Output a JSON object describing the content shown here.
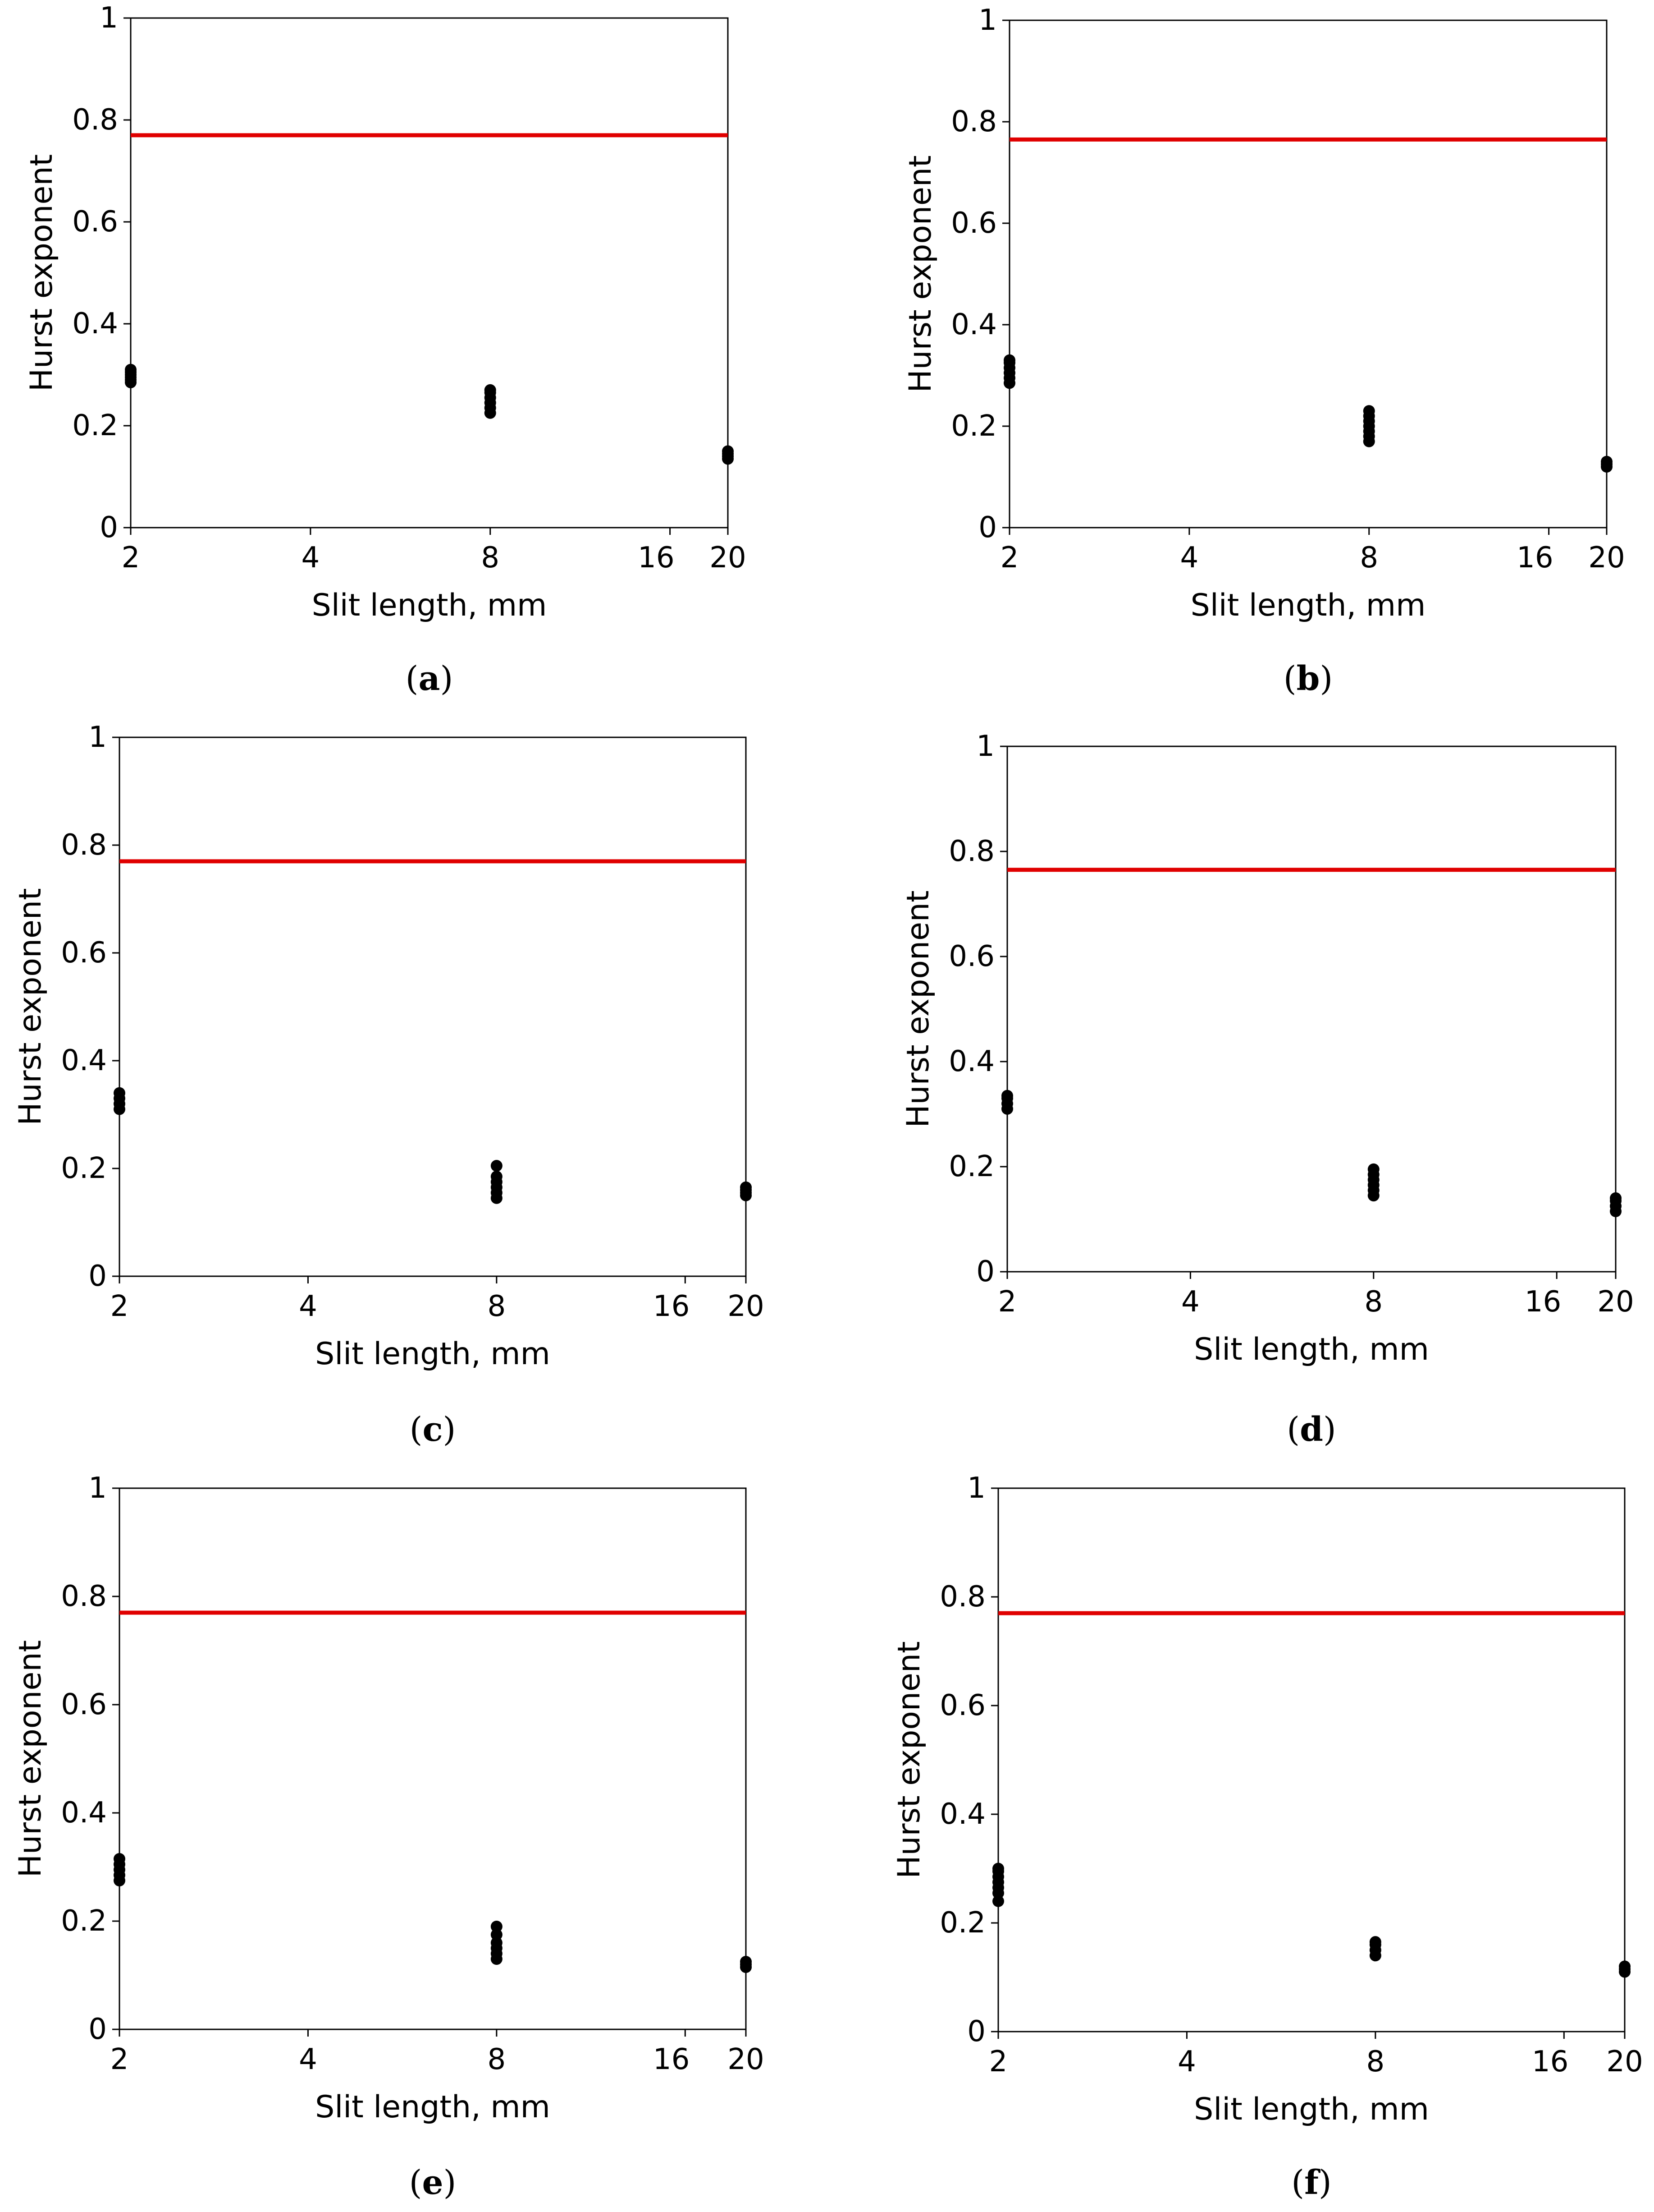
{
  "colors": {
    "reference_line": "#e00000",
    "points": "#000000",
    "axes": "#000000"
  },
  "chart_data": [
    {
      "type": "scatter",
      "caption_letter": "a",
      "xlabel": "Slit length, mm",
      "ylabel": "Hurst exponent",
      "x_scale": "log2",
      "xlim": [
        2,
        20
      ],
      "ylim": [
        0,
        1
      ],
      "x_ticks": [
        2,
        4,
        8,
        16,
        20
      ],
      "x_tick_labels": [
        "2",
        "4",
        "8",
        "16",
        "20"
      ],
      "y_ticks": [
        0,
        0.2,
        0.4,
        0.6,
        0.8,
        1
      ],
      "y_tick_labels": [
        "0",
        "0.2",
        "0.4",
        "0.6",
        "0.8",
        "1"
      ],
      "reference_line": 0.77,
      "series": [
        {
          "x": 2,
          "values": [
            0.285,
            0.29,
            0.295,
            0.3,
            0.305,
            0.31
          ]
        },
        {
          "x": 8,
          "values": [
            0.225,
            0.235,
            0.245,
            0.255,
            0.265,
            0.27
          ]
        },
        {
          "x": 20,
          "values": [
            0.135,
            0.14,
            0.145,
            0.15
          ]
        }
      ]
    },
    {
      "type": "scatter",
      "caption_letter": "b",
      "xlabel": "Slit length, mm",
      "ylabel": "Hurst exponent",
      "x_scale": "log2",
      "xlim": [
        2,
        20
      ],
      "ylim": [
        0,
        1
      ],
      "x_ticks": [
        2,
        4,
        8,
        16,
        20
      ],
      "x_tick_labels": [
        "2",
        "4",
        "8",
        "16",
        "20"
      ],
      "y_ticks": [
        0,
        0.2,
        0.4,
        0.6,
        0.8,
        1
      ],
      "y_tick_labels": [
        "0",
        "0.2",
        "0.4",
        "0.6",
        "0.8",
        "1"
      ],
      "reference_line": 0.765,
      "series": [
        {
          "x": 2,
          "values": [
            0.285,
            0.295,
            0.305,
            0.315,
            0.325,
            0.33
          ]
        },
        {
          "x": 8,
          "values": [
            0.17,
            0.18,
            0.19,
            0.2,
            0.21,
            0.22,
            0.23
          ]
        },
        {
          "x": 20,
          "values": [
            0.12,
            0.125,
            0.13
          ]
        }
      ]
    },
    {
      "type": "scatter",
      "caption_letter": "c",
      "xlabel": "Slit length, mm",
      "ylabel": "Hurst exponent",
      "x_scale": "log2",
      "xlim": [
        2,
        20
      ],
      "ylim": [
        0,
        1
      ],
      "x_ticks": [
        2,
        4,
        8,
        16,
        20
      ],
      "x_tick_labels": [
        "2",
        "4",
        "8",
        "16",
        "20"
      ],
      "y_ticks": [
        0,
        0.2,
        0.4,
        0.6,
        0.8,
        1
      ],
      "y_tick_labels": [
        "0",
        "0.2",
        "0.4",
        "0.6",
        "0.8",
        "1"
      ],
      "reference_line": 0.77,
      "series": [
        {
          "x": 2,
          "values": [
            0.31,
            0.32,
            0.33,
            0.34
          ]
        },
        {
          "x": 8,
          "values": [
            0.145,
            0.155,
            0.165,
            0.175,
            0.185,
            0.205
          ]
        },
        {
          "x": 20,
          "values": [
            0.15,
            0.155,
            0.16,
            0.165
          ]
        }
      ]
    },
    {
      "type": "scatter",
      "caption_letter": "d",
      "xlabel": "Slit length, mm",
      "ylabel": "Hurst exponent",
      "x_scale": "log2",
      "xlim": [
        2,
        20
      ],
      "ylim": [
        0,
        1
      ],
      "x_ticks": [
        2,
        4,
        8,
        16,
        20
      ],
      "x_tick_labels": [
        "2",
        "4",
        "8",
        "16",
        "20"
      ],
      "y_ticks": [
        0,
        0.2,
        0.4,
        0.6,
        0.8,
        1
      ],
      "y_tick_labels": [
        "0",
        "0.2",
        "0.4",
        "0.6",
        "0.8",
        "1"
      ],
      "reference_line": 0.765,
      "series": [
        {
          "x": 2,
          "values": [
            0.31,
            0.32,
            0.33,
            0.335
          ]
        },
        {
          "x": 8,
          "values": [
            0.145,
            0.155,
            0.165,
            0.175,
            0.185,
            0.195
          ]
        },
        {
          "x": 20,
          "values": [
            0.115,
            0.125,
            0.135,
            0.14
          ]
        }
      ]
    },
    {
      "type": "scatter",
      "caption_letter": "e",
      "xlabel": "Slit length, mm",
      "ylabel": "Hurst exponent",
      "x_scale": "log2",
      "xlim": [
        2,
        20
      ],
      "ylim": [
        0,
        1
      ],
      "x_ticks": [
        2,
        4,
        8,
        16,
        20
      ],
      "x_tick_labels": [
        "2",
        "4",
        "8",
        "16",
        "20"
      ],
      "y_ticks": [
        0,
        0.2,
        0.4,
        0.6,
        0.8,
        1
      ],
      "y_tick_labels": [
        "0",
        "0.2",
        "0.4",
        "0.6",
        "0.8",
        "1"
      ],
      "reference_line": 0.77,
      "series": [
        {
          "x": 2,
          "values": [
            0.275,
            0.285,
            0.295,
            0.305,
            0.315
          ]
        },
        {
          "x": 8,
          "values": [
            0.13,
            0.14,
            0.15,
            0.16,
            0.175,
            0.19
          ]
        },
        {
          "x": 20,
          "values": [
            0.115,
            0.12,
            0.125
          ]
        }
      ]
    },
    {
      "type": "scatter",
      "caption_letter": "f",
      "xlabel": "Slit length, mm",
      "ylabel": "Hurst exponent",
      "x_scale": "log2",
      "xlim": [
        2,
        20
      ],
      "ylim": [
        0,
        1
      ],
      "x_ticks": [
        2,
        4,
        8,
        16,
        20
      ],
      "x_tick_labels": [
        "2",
        "4",
        "8",
        "16",
        "20"
      ],
      "y_ticks": [
        0,
        0.2,
        0.4,
        0.6,
        0.8,
        1
      ],
      "y_tick_labels": [
        "0",
        "0.2",
        "0.4",
        "0.6",
        "0.8",
        "1"
      ],
      "reference_line": 0.77,
      "series": [
        {
          "x": 2,
          "values": [
            0.24,
            0.255,
            0.265,
            0.275,
            0.285,
            0.295,
            0.3
          ]
        },
        {
          "x": 8,
          "values": [
            0.14,
            0.15,
            0.16,
            0.165
          ]
        },
        {
          "x": 20,
          "values": [
            0.11,
            0.115,
            0.12
          ]
        }
      ]
    }
  ]
}
